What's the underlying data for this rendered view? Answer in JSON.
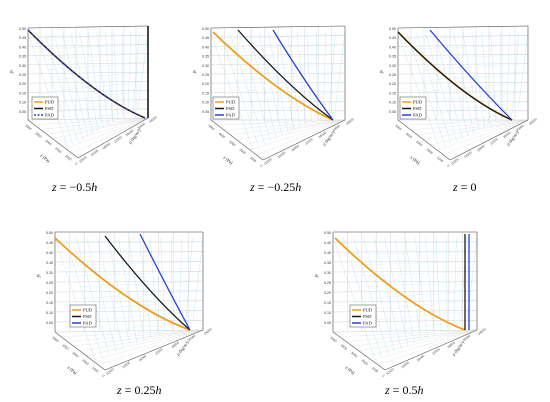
{
  "legend_colors": {
    "PUD": "#f39c1a",
    "PSD": "#1a1a1a",
    "PAD": "#2442d4"
  },
  "chart_data": [
    {
      "type": "line",
      "caption": {
        "z": "z",
        "eq": " = −0.5",
        "h": "h"
      },
      "y_ticks": [
        "0.50",
        "0.45",
        "0.40",
        "0.35",
        "0.30",
        "0.25",
        "0.20",
        "0.15",
        "0.10",
        "0.05"
      ],
      "y_axis_label": "σₓ",
      "x_axis_label": "z (Pa)",
      "depth_axis_label": "ρ (kg/m³)",
      "legend": [
        "PUD",
        "PSD",
        "PAD"
      ],
      "series": [
        {
          "name": "PUD",
          "values": [
            0.5,
            0.43,
            0.36,
            0.29,
            0.22,
            0.16,
            0.1,
            0.06
          ]
        },
        {
          "name": "PSD",
          "values": [
            0.5,
            0.43,
            0.36,
            0.29,
            0.22,
            0.16,
            0.1,
            0.06
          ]
        },
        {
          "name": "PAD",
          "values": [
            0.5,
            0.43,
            0.36,
            0.29,
            0.22,
            0.16,
            0.1,
            0.06
          ]
        }
      ]
    },
    {
      "type": "line",
      "caption": {
        "z": "z",
        "eq": " = −0.25",
        "h": "h"
      },
      "y_ticks": [
        "0.50",
        "0.45",
        "0.40",
        "0.35",
        "0.30",
        "0.25",
        "0.20",
        "0.15",
        "0.10",
        "0.05"
      ],
      "y_axis_label": "σₓ",
      "x_axis_label": "z (Pa)",
      "depth_axis_label": "ρ (kg/m³)",
      "legend": [
        "PUD",
        "PSD",
        "PAD"
      ],
      "series": [
        {
          "name": "PUD",
          "values": [
            0.5,
            0.42,
            0.35,
            0.28,
            0.21,
            0.15,
            0.1,
            0.06
          ]
        },
        {
          "name": "PSD",
          "values": [
            0.5,
            0.43,
            0.36,
            0.29,
            0.22,
            0.16,
            0.1,
            0.06
          ]
        },
        {
          "name": "PAD",
          "values": [
            0.5,
            0.42,
            0.35,
            0.28,
            0.21,
            0.15,
            0.1,
            0.06
          ]
        }
      ]
    },
    {
      "type": "line",
      "caption": {
        "z": "z",
        "eq": " = 0",
        "h": ""
      },
      "y_ticks": [
        "0.50",
        "0.45",
        "0.40",
        "0.35",
        "0.30",
        "0.25",
        "0.20",
        "0.15",
        "0.10",
        "0.05"
      ],
      "y_axis_label": "σₓ",
      "x_axis_label": "z (Pa)",
      "depth_axis_label": "ρ (kg/m³)",
      "legend": [
        "PUD",
        "PSD",
        "PAD"
      ],
      "series": [
        {
          "name": "PUD",
          "values": [
            0.5,
            0.42,
            0.35,
            0.28,
            0.21,
            0.15,
            0.1,
            0.06
          ]
        },
        {
          "name": "PSD",
          "values": [
            0.5,
            0.42,
            0.35,
            0.28,
            0.21,
            0.15,
            0.1,
            0.06
          ]
        },
        {
          "name": "PAD",
          "values": [
            0.5,
            0.43,
            0.36,
            0.29,
            0.22,
            0.16,
            0.1,
            0.06
          ]
        }
      ]
    },
    {
      "type": "line",
      "caption": {
        "z": "z",
        "eq": " = 0.25",
        "h": "h"
      },
      "y_ticks": [
        "0.50",
        "0.45",
        "0.40",
        "0.35",
        "0.30",
        "0.25",
        "0.20",
        "0.15",
        "0.10",
        "0.05"
      ],
      "y_axis_label": "σₓ",
      "x_axis_label": "z (Pa)",
      "depth_axis_label": "ρ (kg/m³)",
      "legend": [
        "PUD",
        "PSD",
        "PAD"
      ],
      "series": [
        {
          "name": "PUD",
          "values": [
            0.5,
            0.43,
            0.36,
            0.29,
            0.22,
            0.16,
            0.1,
            0.06
          ]
        },
        {
          "name": "PSD",
          "values": [
            0.5,
            0.43,
            0.36,
            0.29,
            0.22,
            0.16,
            0.1,
            0.06
          ]
        },
        {
          "name": "PAD",
          "values": [
            0.5,
            0.43,
            0.36,
            0.29,
            0.22,
            0.16,
            0.1,
            0.06
          ]
        }
      ]
    },
    {
      "type": "line",
      "caption": {
        "z": "z",
        "eq": " = 0.5",
        "h": "h"
      },
      "y_ticks": [
        "0.50",
        "0.45",
        "0.40",
        "0.35",
        "0.30",
        "0.25",
        "0.20",
        "0.15",
        "0.10",
        "0.05"
      ],
      "y_axis_label": "σₓ",
      "x_axis_label": "z (Pa)",
      "depth_axis_label": "ρ (kg/m³)",
      "legend": [
        "PUD",
        "PSD",
        "PAD"
      ],
      "series": [
        {
          "name": "PUD",
          "values": [
            0.5,
            0.43,
            0.36,
            0.29,
            0.22,
            0.16,
            0.1,
            0.06
          ]
        },
        {
          "name": "PSD",
          "values": [
            0.5,
            0.43,
            0.36,
            0.29,
            0.22,
            0.16,
            0.1,
            0.06
          ]
        },
        {
          "name": "PAD",
          "values": [
            0.5,
            0.43,
            0.36,
            0.29,
            0.22,
            0.16,
            0.1,
            0.06
          ]
        }
      ]
    }
  ]
}
